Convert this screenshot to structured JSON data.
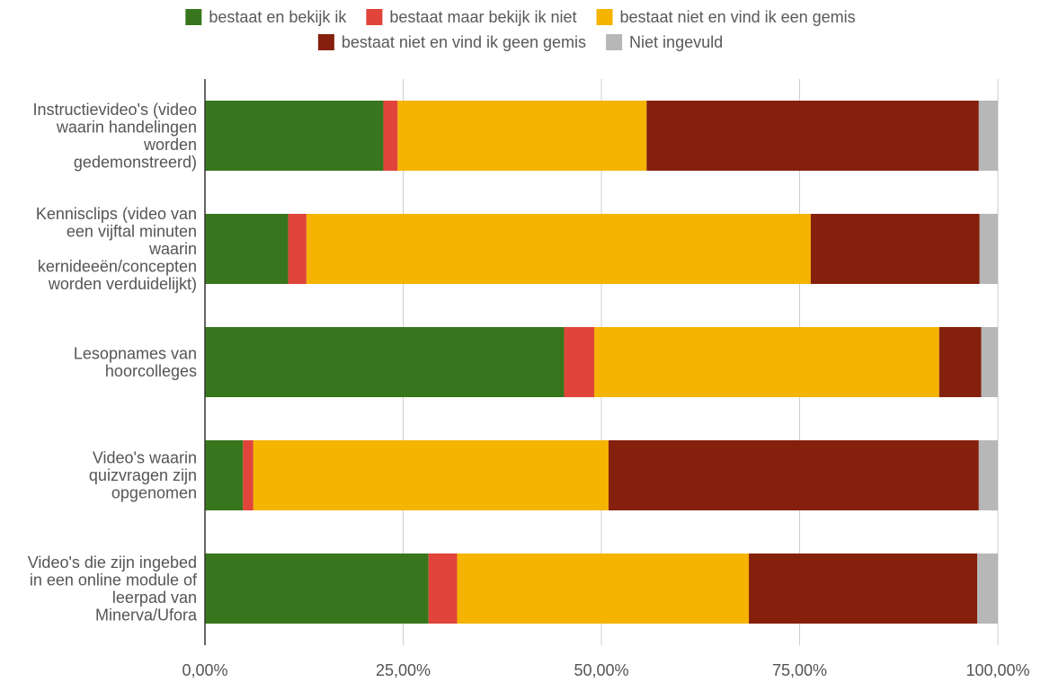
{
  "chart_data": {
    "type": "bar",
    "orientation": "horizontal",
    "stacked": true,
    "categories": [
      "Instructievideo's (video waarin handelingen worden gedemonstreerd)",
      "Kennisclips (video van een vijftal minuten waarin kernideeën/concepten worden verduidelijkt)",
      "Lesopnames van hoorcolleges",
      "Video's waarin quizvragen zijn opgenomen",
      "Video's die zijn ingebed in een online module of leerpad van Minerva/Ufora"
    ],
    "category_lines": [
      [
        "Instructievideo's (video",
        "waarin handelingen",
        "worden",
        "gedemonstreerd)"
      ],
      [
        "Kennisclips (video van",
        "een vijftal minuten",
        "waarin",
        "kernideeën/concepten",
        "worden verduidelijkt)"
      ],
      [
        "Lesopnames van",
        "hoorcolleges"
      ],
      [
        "Video's waarin",
        "quizvragen zijn",
        "opgenomen"
      ],
      [
        "Video's die zijn ingebed",
        "in een online module of",
        "leerpad van",
        "Minerva/Ufora"
      ]
    ],
    "series": [
      {
        "name": "bestaat en bekijk ik",
        "color": "#38761d",
        "values": [
          22.5,
          10.5,
          45.3,
          4.8,
          28.2
        ]
      },
      {
        "name": "bestaat maar bekijk ik niet",
        "color": "#e0443a",
        "values": [
          1.8,
          2.3,
          3.8,
          1.3,
          3.6
        ]
      },
      {
        "name": "bestaat niet en vind ik een gemis",
        "color": "#f4b400",
        "values": [
          31.4,
          63.6,
          43.5,
          44.8,
          36.8
        ]
      },
      {
        "name": "bestaat niet en vind ik geen gemis",
        "color": "#85200c",
        "values": [
          41.9,
          21.3,
          5.3,
          46.7,
          28.8
        ]
      },
      {
        "name": "Niet ingevuld",
        "color": "#b7b7b7",
        "values": [
          2.4,
          2.3,
          2.1,
          2.4,
          2.6
        ]
      }
    ],
    "x_ticks": [
      "0,00%",
      "25,00%",
      "50,00%",
      "75,00%",
      "100,00%"
    ],
    "xlim": [
      0,
      100
    ],
    "grid": true,
    "legend_position": "top",
    "title": "",
    "xlabel": "",
    "ylabel": ""
  }
}
